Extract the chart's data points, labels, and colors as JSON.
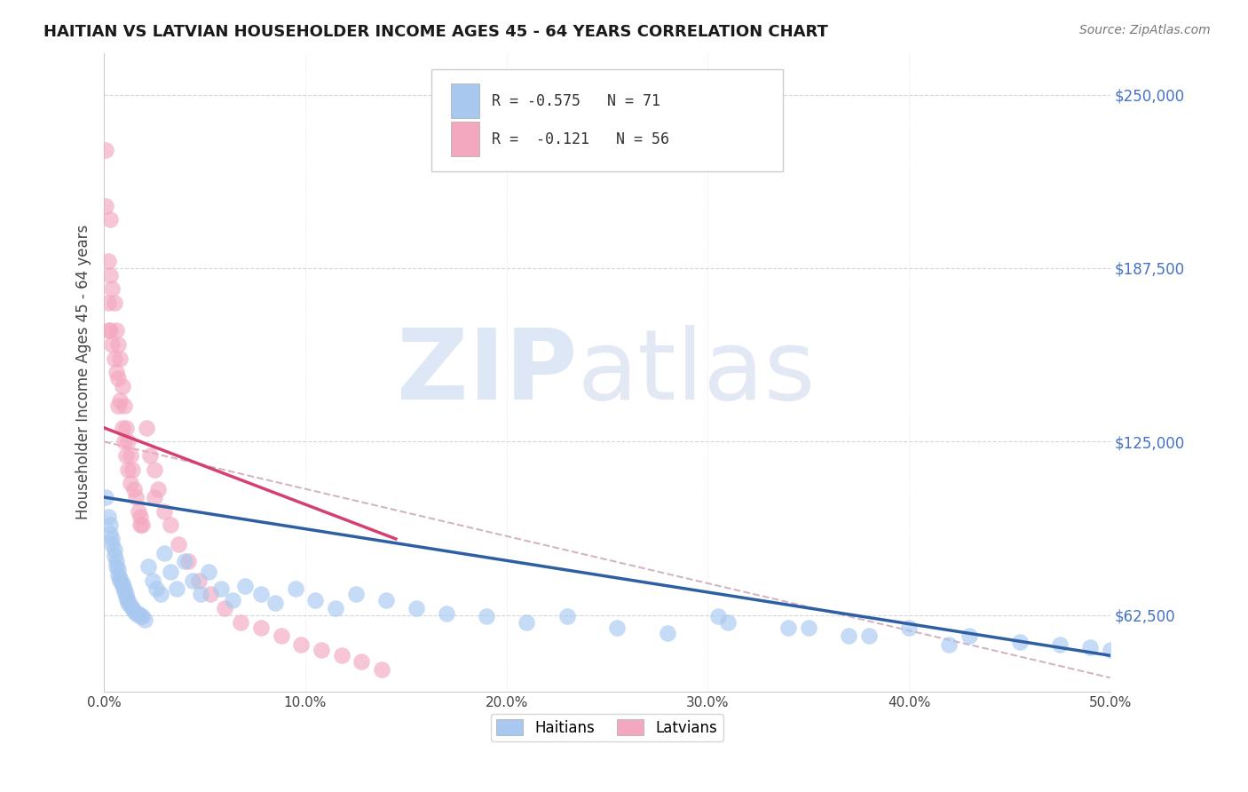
{
  "title": "HAITIAN VS LATVIAN HOUSEHOLDER INCOME AGES 45 - 64 YEARS CORRELATION CHART",
  "source": "Source: ZipAtlas.com",
  "ylabel": "Householder Income Ages 45 - 64 years",
  "xlim": [
    0.0,
    0.5
  ],
  "ylim": [
    35000,
    265000
  ],
  "yticks": [
    62500,
    125000,
    187500,
    250000
  ],
  "ytick_labels": [
    "$62,500",
    "$125,000",
    "$187,500",
    "$250,000"
  ],
  "xticks": [
    0.0,
    0.1,
    0.2,
    0.3,
    0.4,
    0.5
  ],
  "xtick_labels": [
    "0.0%",
    "10.0%",
    "20.0%",
    "30.0%",
    "40.0%",
    "50.0%"
  ],
  "haitian_R": -0.575,
  "haitian_N": 71,
  "latvian_R": -0.121,
  "latvian_N": 56,
  "haitian_color": "#A8C8F0",
  "latvian_color": "#F4A8C0",
  "haitian_line_color": "#2E5FA3",
  "latvian_line_color": "#D44070",
  "dashed_line_color": "#C8A0B8",
  "background_color": "#FFFFFF",
  "grid_color": "#CCCCCC",
  "title_color": "#1a1a1a",
  "ytick_color": "#4472C4",
  "legend_text_color": "#333333",
  "haitian_x": [
    0.001,
    0.002,
    0.003,
    0.003,
    0.004,
    0.004,
    0.005,
    0.005,
    0.006,
    0.006,
    0.007,
    0.007,
    0.008,
    0.008,
    0.009,
    0.009,
    0.01,
    0.01,
    0.011,
    0.011,
    0.012,
    0.012,
    0.013,
    0.014,
    0.015,
    0.016,
    0.017,
    0.018,
    0.019,
    0.02,
    0.022,
    0.024,
    0.026,
    0.028,
    0.03,
    0.033,
    0.036,
    0.04,
    0.044,
    0.048,
    0.052,
    0.058,
    0.064,
    0.07,
    0.078,
    0.085,
    0.095,
    0.105,
    0.115,
    0.125,
    0.14,
    0.155,
    0.17,
    0.19,
    0.21,
    0.23,
    0.255,
    0.28,
    0.31,
    0.34,
    0.37,
    0.4,
    0.43,
    0.455,
    0.475,
    0.49,
    0.5,
    0.305,
    0.35,
    0.38,
    0.42
  ],
  "haitian_y": [
    105000,
    98000,
    95000,
    92000,
    90000,
    88000,
    86000,
    84000,
    82000,
    80000,
    79000,
    77000,
    76000,
    75000,
    74000,
    73000,
    72000,
    71000,
    70000,
    69000,
    68000,
    67000,
    66000,
    65000,
    64000,
    63000,
    63000,
    62000,
    62000,
    61000,
    80000,
    75000,
    72000,
    70000,
    85000,
    78000,
    72000,
    82000,
    75000,
    70000,
    78000,
    72000,
    68000,
    73000,
    70000,
    67000,
    72000,
    68000,
    65000,
    70000,
    68000,
    65000,
    63000,
    62000,
    60000,
    62000,
    58000,
    56000,
    60000,
    58000,
    55000,
    58000,
    55000,
    53000,
    52000,
    51000,
    50000,
    62000,
    58000,
    55000,
    52000
  ],
  "latvian_x": [
    0.001,
    0.001,
    0.002,
    0.002,
    0.002,
    0.003,
    0.003,
    0.003,
    0.004,
    0.004,
    0.005,
    0.005,
    0.006,
    0.006,
    0.007,
    0.007,
    0.007,
    0.008,
    0.008,
    0.009,
    0.009,
    0.01,
    0.01,
    0.011,
    0.011,
    0.012,
    0.012,
    0.013,
    0.013,
    0.014,
    0.015,
    0.016,
    0.017,
    0.018,
    0.019,
    0.021,
    0.023,
    0.025,
    0.027,
    0.03,
    0.033,
    0.037,
    0.042,
    0.047,
    0.053,
    0.06,
    0.068,
    0.078,
    0.088,
    0.098,
    0.108,
    0.118,
    0.128,
    0.138,
    0.018,
    0.025
  ],
  "latvian_y": [
    230000,
    210000,
    190000,
    175000,
    165000,
    205000,
    185000,
    165000,
    180000,
    160000,
    175000,
    155000,
    165000,
    150000,
    160000,
    148000,
    138000,
    155000,
    140000,
    145000,
    130000,
    138000,
    125000,
    130000,
    120000,
    125000,
    115000,
    120000,
    110000,
    115000,
    108000,
    105000,
    100000,
    98000,
    95000,
    130000,
    120000,
    115000,
    108000,
    100000,
    95000,
    88000,
    82000,
    75000,
    70000,
    65000,
    60000,
    58000,
    55000,
    52000,
    50000,
    48000,
    46000,
    43000,
    95000,
    105000
  ],
  "haitian_trend_x": [
    0.0,
    0.5
  ],
  "haitian_trend_y": [
    105000,
    48000
  ],
  "latvian_trend_x": [
    0.0,
    0.145
  ],
  "latvian_trend_y": [
    130000,
    90000
  ],
  "dashed_trend_x": [
    0.0,
    0.5
  ],
  "dashed_trend_y": [
    125000,
    40000
  ]
}
